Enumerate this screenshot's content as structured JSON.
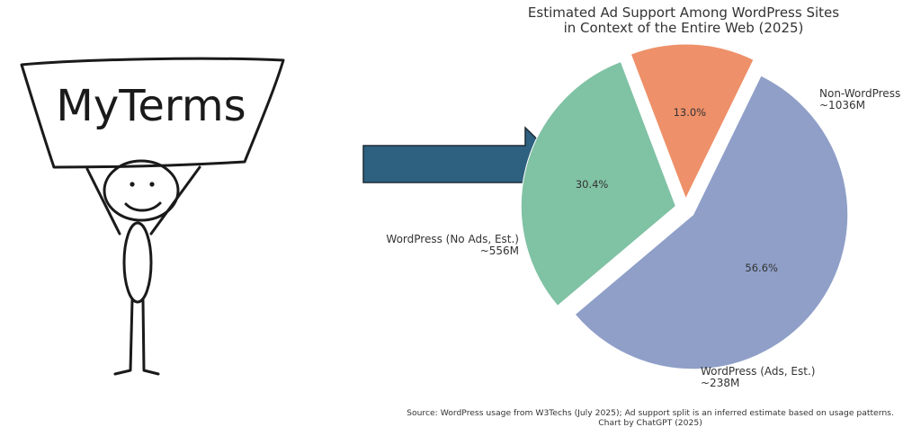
{
  "logo": {
    "text": "MyTerms"
  },
  "icons": {
    "stick_figure": "stick-figure-holding-sign",
    "arrow": "right-arrow"
  },
  "colors": {
    "arrow_fill": "#2e607f",
    "arrow_stroke": "#1c2a36",
    "non_wordpress": "#8f9fc8",
    "wp_no_ads": "#80c2a4",
    "wp_ads": "#ee9069",
    "ink": "#1a1a1a"
  },
  "chart_data": {
    "type": "pie",
    "title": [
      "Estimated Ad Support Among WordPress Sites",
      "in Context of the Entire Web (2025)"
    ],
    "slices": [
      {
        "key": "non_wordpress",
        "label_lines": [
          "Non-WordPress",
          "~1036M"
        ],
        "value_millions": 1036,
        "percent_label": "56.6%",
        "color": "#8f9fc8"
      },
      {
        "key": "wp_no_ads",
        "label_lines": [
          "WordPress (No Ads, Est.)",
          "~556M"
        ],
        "value_millions": 556,
        "percent_label": "30.4%",
        "color": "#80c2a4"
      },
      {
        "key": "wp_ads",
        "label_lines": [
          "WordPress (Ads, Est.)",
          "~238M"
        ],
        "value_millions": 238,
        "percent_label": "13.0%",
        "color": "#ee9069"
      }
    ],
    "source_lines": [
      "Source: WordPress usage from W3Techs (July 2025); Ad support split is an inferred estimate based on usage patterns.",
      "Chart by ChatGPT (2025)"
    ]
  }
}
